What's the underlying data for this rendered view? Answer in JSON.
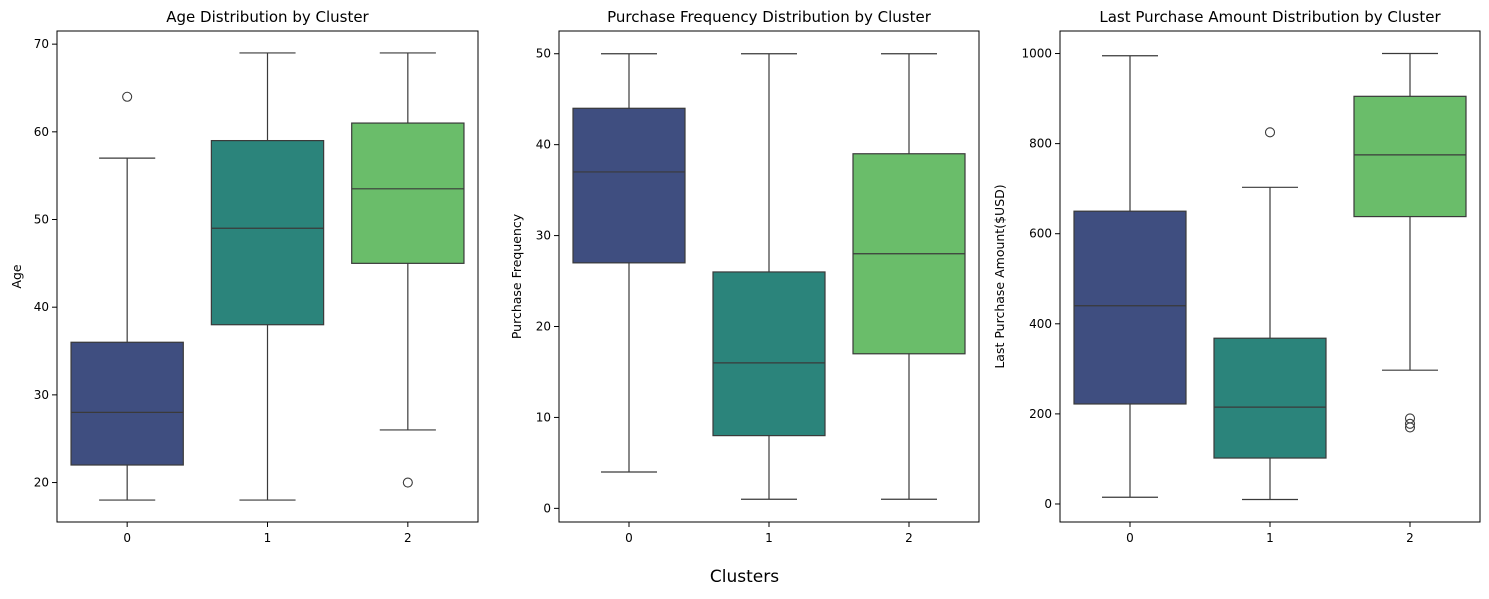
{
  "figure": {
    "xlabel": "Clusters"
  },
  "chart_data": [
    {
      "type": "box",
      "title": "Age Distribution by Cluster",
      "xlabel": "",
      "ylabel": "Age",
      "categories": [
        "0",
        "1",
        "2"
      ],
      "ylim": [
        15.5,
        71.5
      ],
      "yticks": [
        20,
        30,
        40,
        50,
        60,
        70
      ],
      "colors": [
        "#3f4e80",
        "#2b847b",
        "#6abd6a"
      ],
      "boxes": [
        {
          "whisker_low": 18,
          "q1": 22,
          "median": 28,
          "q3": 36,
          "whisker_high": 57,
          "outliers": [
            64
          ]
        },
        {
          "whisker_low": 18,
          "q1": 38,
          "median": 49,
          "q3": 59,
          "whisker_high": 69,
          "outliers": []
        },
        {
          "whisker_low": 26,
          "q1": 45,
          "median": 53.5,
          "q3": 61,
          "whisker_high": 69,
          "outliers": [
            20
          ]
        }
      ]
    },
    {
      "type": "box",
      "title": "Purchase Frequency Distribution by Cluster",
      "xlabel": "",
      "ylabel": "Purchase Frequency",
      "categories": [
        "0",
        "1",
        "2"
      ],
      "ylim": [
        -1.5,
        52.5
      ],
      "yticks": [
        0,
        10,
        20,
        30,
        40,
        50
      ],
      "colors": [
        "#3f4e80",
        "#2b847b",
        "#6abd6a"
      ],
      "boxes": [
        {
          "whisker_low": 4,
          "q1": 27,
          "median": 37,
          "q3": 44,
          "whisker_high": 50,
          "outliers": []
        },
        {
          "whisker_low": 1,
          "q1": 8,
          "median": 16,
          "q3": 26,
          "whisker_high": 50,
          "outliers": []
        },
        {
          "whisker_low": 1,
          "q1": 17,
          "median": 28,
          "q3": 39,
          "whisker_high": 50,
          "outliers": []
        }
      ]
    },
    {
      "type": "box",
      "title": "Last Purchase Amount Distribution by Cluster",
      "xlabel": "",
      "ylabel": "Last Purchase Amount($USD)",
      "categories": [
        "0",
        "1",
        "2"
      ],
      "ylim": [
        -40,
        1050
      ],
      "yticks": [
        0,
        200,
        400,
        600,
        800,
        1000
      ],
      "colors": [
        "#3f4e80",
        "#2b847b",
        "#6abd6a"
      ],
      "boxes": [
        {
          "whisker_low": 15,
          "q1": 222,
          "median": 440,
          "q3": 650,
          "whisker_high": 995,
          "outliers": []
        },
        {
          "whisker_low": 10,
          "q1": 102,
          "median": 215,
          "q3": 368,
          "whisker_high": 703,
          "outliers": [
            825
          ]
        },
        {
          "whisker_low": 297,
          "q1": 638,
          "median": 775,
          "q3": 905,
          "whisker_high": 1000,
          "outliers": [
            190,
            178,
            170
          ]
        }
      ]
    }
  ]
}
